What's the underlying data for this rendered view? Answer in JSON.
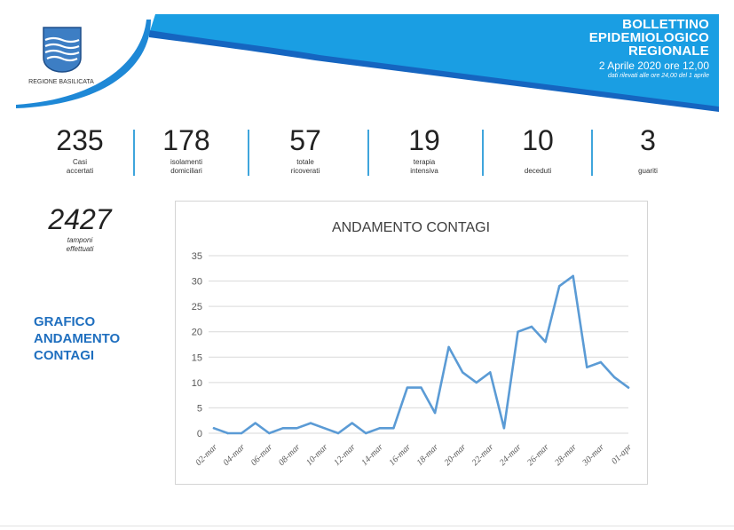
{
  "header": {
    "region_name": "REGIONE BASILICATA",
    "title_lines": [
      "BOLLETTINO",
      "EPIDEMIOLOGICO",
      "REGIONALE"
    ],
    "date": "2 Aprile 2020 ore 12,00",
    "note": "dati rilevati alle ore 24,00 del 1 aprile",
    "accent_color": "#1a9ee3"
  },
  "stats": [
    {
      "value": "235",
      "label": "Casi\naccertati"
    },
    {
      "value": "178",
      "label": "isolamenti\ndomiciliari"
    },
    {
      "value": "57",
      "label": "totale\nricoverati"
    },
    {
      "value": "19",
      "label": "terapia\nintensiva"
    },
    {
      "value": "10",
      "label": "deceduti"
    },
    {
      "value": "3",
      "label": "guariti"
    }
  ],
  "tamponi": {
    "value": "2427",
    "label": "tamponi\neffettuati"
  },
  "side_heading": "GRAFICO\nANDAMENTO\nCONTAGI",
  "chart_data": {
    "type": "line",
    "title": "ANDAMENTO CONTAGI",
    "xlabel": "",
    "ylabel": "",
    "ylim": [
      0,
      35
    ],
    "yticks": [
      0,
      5,
      10,
      15,
      20,
      25,
      30,
      35
    ],
    "grid": true,
    "legend": "none",
    "line_color": "#5b9bd5",
    "x": [
      "02-mar",
      "03-mar",
      "04-mar",
      "05-mar",
      "06-mar",
      "07-mar",
      "08-mar",
      "09-mar",
      "10-mar",
      "11-mar",
      "12-mar",
      "13-mar",
      "14-mar",
      "15-mar",
      "16-mar",
      "17-mar",
      "18-mar",
      "19-mar",
      "20-mar",
      "21-mar",
      "22-mar",
      "23-mar",
      "24-mar",
      "25-mar",
      "26-mar",
      "27-mar",
      "28-mar",
      "29-mar",
      "30-mar",
      "31-mar",
      "01-apr"
    ],
    "x_tick_labels": [
      "02-mar",
      "04-mar",
      "06-mar",
      "08-mar",
      "10-mar",
      "12-mar",
      "14-mar",
      "16-mar",
      "18-mar",
      "20-mar",
      "22-mar",
      "24-mar",
      "26-mar",
      "28-mar",
      "30-mar",
      "01-apr"
    ],
    "values": [
      1,
      0,
      0,
      2,
      0,
      1,
      1,
      2,
      1,
      0,
      2,
      0,
      1,
      1,
      9,
      9,
      4,
      17,
      12,
      10,
      12,
      1,
      20,
      21,
      18,
      29,
      31,
      13,
      14,
      11,
      9
    ]
  }
}
